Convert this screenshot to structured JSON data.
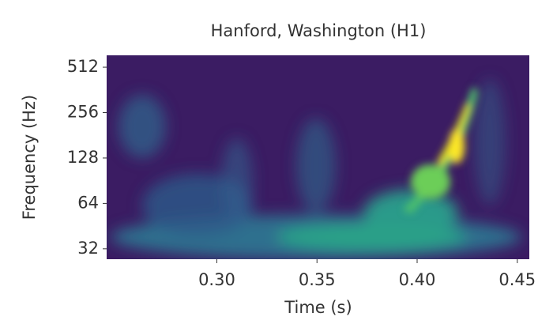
{
  "chart_data": {
    "type": "spectrogram",
    "title": "Hanford, Washington (H1)",
    "x_label": "Time (s)",
    "y_label": "Frequency (Hz)",
    "xlim": [
      0.245,
      0.456
    ],
    "xticks": [
      {
        "value": 0.3,
        "label": "0.30"
      },
      {
        "value": 0.35,
        "label": "0.35"
      },
      {
        "value": 0.4,
        "label": "0.40"
      },
      {
        "value": 0.45,
        "label": "0.45"
      }
    ],
    "ylim": [
      27.3,
      614
    ],
    "yticks": [
      32,
      64,
      128,
      256,
      512
    ],
    "y_log": true
  }
}
